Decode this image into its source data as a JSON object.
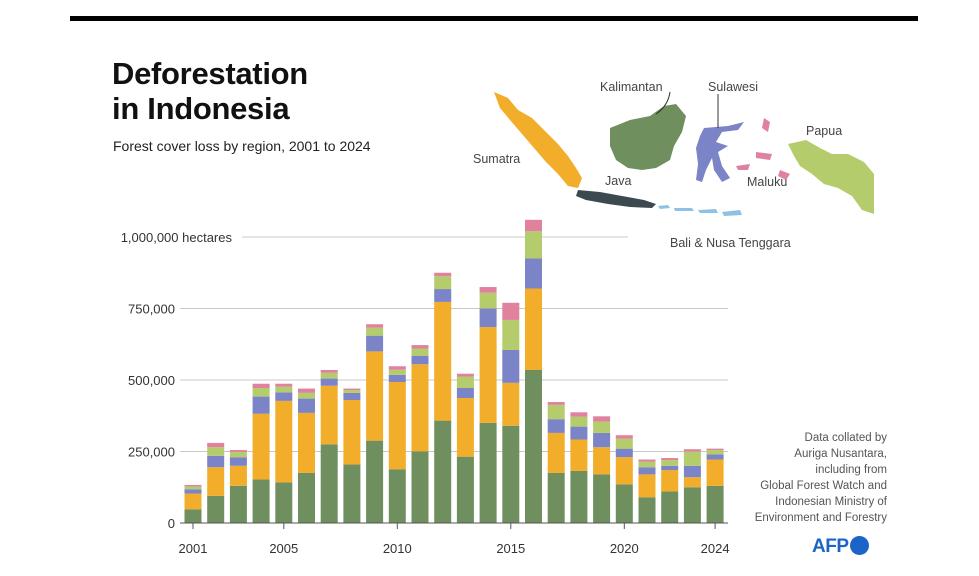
{
  "header": {
    "title_line1": "Deforestation",
    "title_line2": "in Indonesia",
    "subtitle": "Forest cover loss by region, 2001 to 2024"
  },
  "source_note": [
    "Data collated by",
    "Auriga Nusantara,",
    "including from",
    "Global Forest Watch and",
    "Indonesian Ministry of",
    "Environment  and Forestry"
  ],
  "logo": "AFP",
  "map_labels": {
    "kalimantan": "Kalimantan",
    "sulawesi": "Sulawesi",
    "papua": "Papua",
    "sumatra": "Sumatra",
    "java": "Java",
    "maluku": "Maluku",
    "bali": "Bali & Nusa Tenggara"
  },
  "colors": {
    "Kalimantan": "#6f8f5f",
    "Sumatra": "#f2ad2a",
    "Sulawesi": "#7b84c7",
    "Papua": "#b5cc6c",
    "Maluku": "#e0819e",
    "Java": "#3c4a4f",
    "Bali & Nusa Tenggara": "#8ec1e3"
  },
  "chart_data": {
    "type": "bar",
    "stacked": true,
    "x": [
      2001,
      2002,
      2003,
      2004,
      2005,
      2006,
      2007,
      2008,
      2009,
      2010,
      2011,
      2012,
      2013,
      2014,
      2015,
      2016,
      2017,
      2018,
      2019,
      2020,
      2021,
      2022,
      2023,
      2024
    ],
    "x_tick_labels": [
      "2001",
      "2005",
      "2010",
      "2015",
      "2020",
      "2024"
    ],
    "y_tick_labels": [
      "0",
      "250,000",
      "500,000",
      "750,000",
      "1,000,000 hectares"
    ],
    "y_ticks": [
      0,
      250000,
      500000,
      750000,
      1000000
    ],
    "ylim": [
      0,
      1050000
    ],
    "grid": true,
    "series": [
      {
        "name": "Kalimantan",
        "values": [
          48000,
          95000,
          130000,
          152000,
          142000,
          175000,
          275000,
          205000,
          288000,
          188000,
          250000,
          358000,
          232000,
          350000,
          340000,
          535000,
          175000,
          182000,
          170000,
          135000,
          90000,
          110000,
          125000,
          130000
        ]
      },
      {
        "name": "Sumatra",
        "values": [
          55000,
          100000,
          70000,
          230000,
          285000,
          210000,
          205000,
          225000,
          312000,
          305000,
          305000,
          415000,
          205000,
          335000,
          150000,
          285000,
          140000,
          110000,
          95000,
          95000,
          80000,
          75000,
          35000,
          92000
        ]
      },
      {
        "name": "Sulawesi",
        "values": [
          15000,
          40000,
          30000,
          60000,
          30000,
          50000,
          25000,
          25000,
          55000,
          25000,
          30000,
          45000,
          35000,
          65000,
          115000,
          105000,
          48000,
          45000,
          50000,
          30000,
          25000,
          15000,
          40000,
          18000
        ]
      },
      {
        "name": "Papua",
        "values": [
          10000,
          30000,
          18000,
          30000,
          20000,
          20000,
          20000,
          10000,
          28000,
          18000,
          25000,
          45000,
          40000,
          55000,
          105000,
          95000,
          50000,
          35000,
          40000,
          35000,
          20000,
          20000,
          50000,
          15000
        ]
      },
      {
        "name": "Maluku",
        "values": [
          5000,
          15000,
          7000,
          15000,
          10000,
          15000,
          10000,
          5000,
          12000,
          12000,
          12000,
          12000,
          10000,
          20000,
          60000,
          40000,
          10000,
          15000,
          18000,
          12000,
          7000,
          7000,
          8000,
          5000
        ]
      }
    ]
  }
}
